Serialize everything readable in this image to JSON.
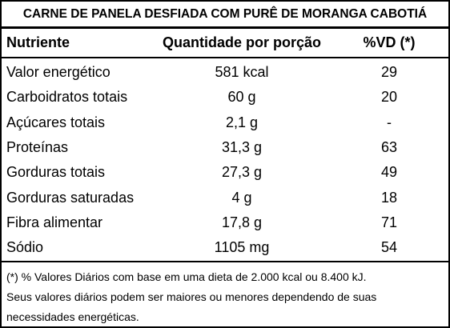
{
  "title": "CARNE DE PANELA DESFIADA COM PURÊ DE MORANGA CABOTIÁ",
  "table": {
    "header": [
      "Nutriente",
      "Quantidade por porção",
      "%VD (*)"
    ],
    "rows": [
      [
        "Valor energético",
        "581 kcal",
        "29"
      ],
      [
        "Carboidratos totais",
        "60 g",
        "20"
      ],
      [
        "Açúcares totais",
        "2,1 g",
        "-"
      ],
      [
        "Proteínas",
        "31,3 g",
        "63"
      ],
      [
        "Gorduras totais",
        "27,3 g",
        "49"
      ],
      [
        "Gorduras saturadas",
        "4 g",
        "18"
      ],
      [
        "Fibra alimentar",
        "17,8 g",
        "71"
      ],
      [
        "Sódio",
        "1105 mg",
        "54"
      ]
    ]
  },
  "footnote": [
    "(*) % Valores Diários com base em uma dieta de 2.000 kcal ou 8.400 kJ.",
    "Seus valores diários podem ser maiores ou menores dependendo de suas",
    "necessidades energéticas."
  ]
}
